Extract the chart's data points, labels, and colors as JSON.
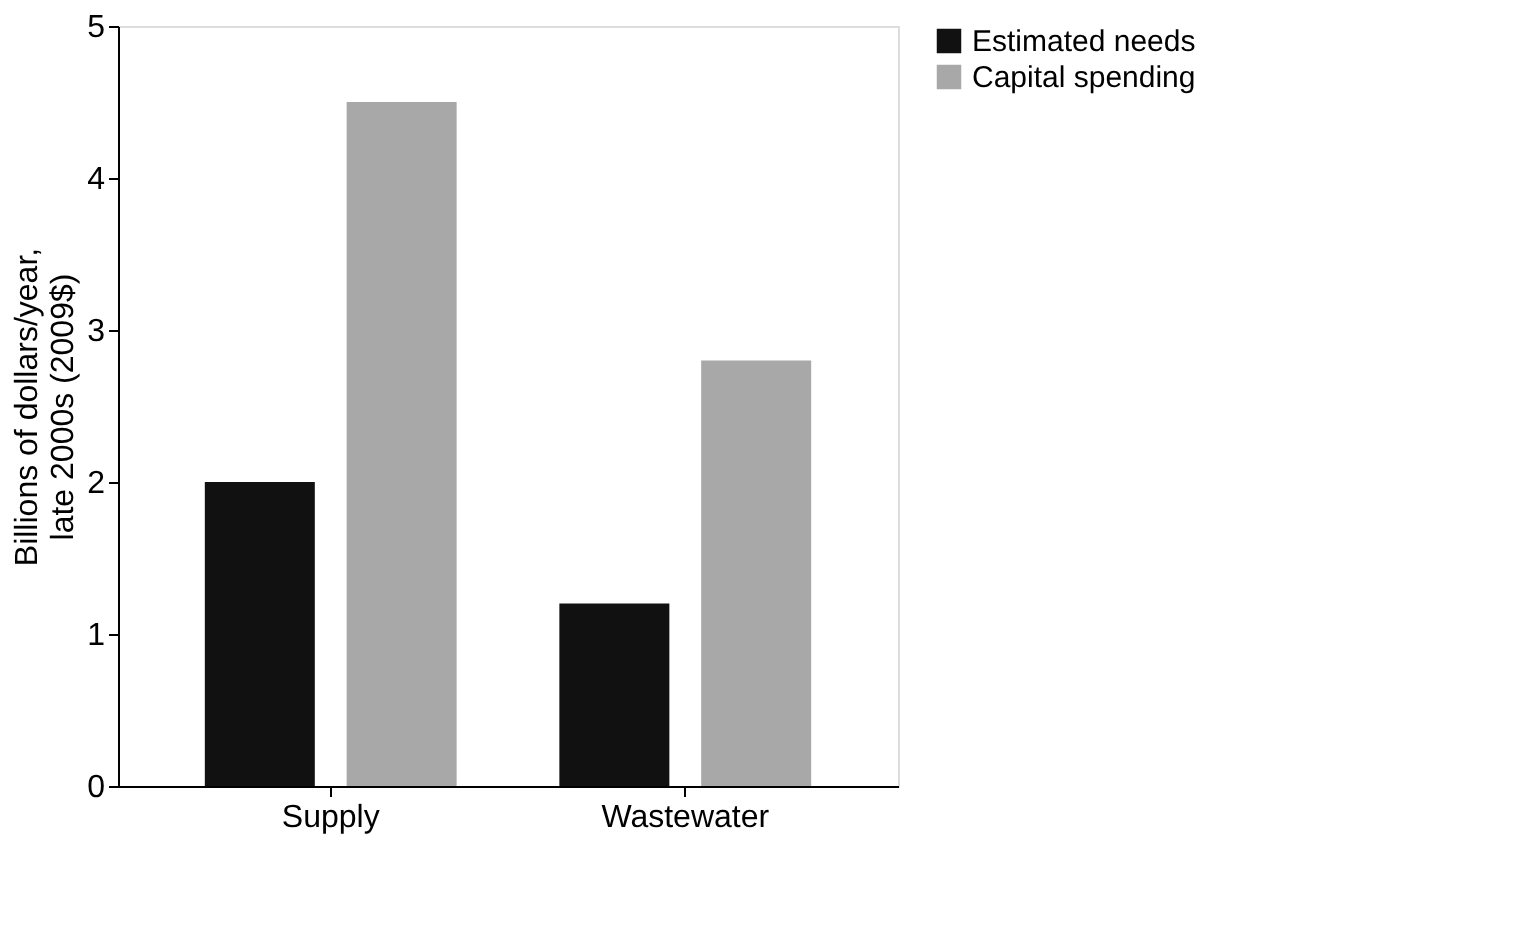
{
  "chart_data": {
    "type": "bar",
    "ylabel": "Billions of dollars/year, late 2000s (2009$)",
    "categories": [
      "Supply",
      "Wastewater"
    ],
    "series": [
      {
        "name": "Estimated needs",
        "color": "#111111",
        "values": [
          2.0,
          1.2
        ]
      },
      {
        "name": "Capital spending",
        "color": "#a8a8a8",
        "values": [
          4.5,
          2.8
        ]
      }
    ],
    "ylim": [
      0,
      5
    ],
    "yticks": [
      0,
      1,
      2,
      3,
      4,
      5
    ],
    "grid": false,
    "legend": "right"
  }
}
